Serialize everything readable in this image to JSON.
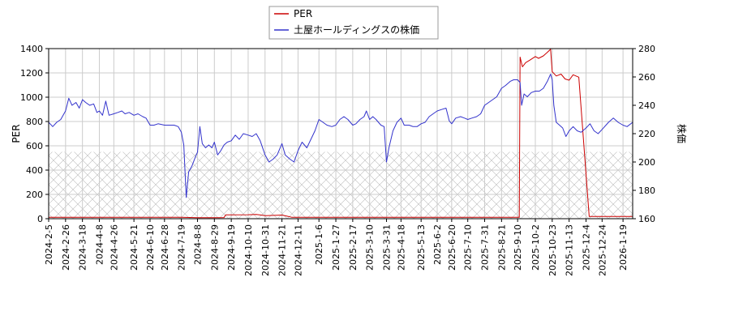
{
  "chart_data": {
    "type": "line",
    "legend": {
      "placement": "top-center",
      "entries": [
        {
          "label": "PER",
          "color": "#cc0000"
        },
        {
          "label": "土屋ホールディングスの株価",
          "color": "#3333cc"
        }
      ]
    },
    "ylabel_left": "PER",
    "ylabel_right": "株価",
    "ylim_left": [
      0,
      1400
    ],
    "ylim_right": [
      160,
      280
    ],
    "yticks_left": [
      "0",
      "200",
      "400",
      "600",
      "800",
      "1000",
      "1200",
      "1400"
    ],
    "yticks_right": [
      "160",
      "180",
      "200",
      "220",
      "240",
      "260",
      "280"
    ],
    "x_tick_labels": [
      "2024-2-5",
      "2024-2-26",
      "2024-3-18",
      "2024-4-8",
      "2024-4-26",
      "2024-5-21",
      "2024-6-10",
      "2024-6-28",
      "2024-7-19",
      "2024-8-8",
      "2024-8-29",
      "2024-9-19",
      "2024-10-10",
      "2024-10-31",
      "2024-11-21",
      "2024-12-11",
      "2025-1-6",
      "2025-1-27",
      "2025-2-17",
      "2025-3-10",
      "2025-3-31",
      "2025-4-18",
      "2025-5-13",
      "2025-6-2",
      "2025-6-20",
      "2025-7-10",
      "2025-7-31",
      "2025-8-21",
      "2025-9-10",
      "2025-10-2",
      "2025-10-23",
      "2025-11-13",
      "2025-12-4",
      "2025-12-24",
      "2026-1-19"
    ],
    "grid": true,
    "hatched_band_left": [
      0,
      550
    ],
    "series": [
      {
        "name": "PER",
        "axis": "left",
        "color": "#cc0000",
        "points": [
          [
            "2024-2-5",
            12
          ],
          [
            "2024-3-18",
            12
          ],
          [
            "2024-5-21",
            12
          ],
          [
            "2024-7-19",
            12
          ],
          [
            "2024-8-8",
            8
          ],
          [
            "2024-8-29",
            8
          ],
          [
            "2024-9-10",
            9
          ],
          [
            "2024-9-12",
            32
          ],
          [
            "2024-10-10",
            33
          ],
          [
            "2024-10-20",
            35
          ],
          [
            "2024-10-26",
            30
          ],
          [
            "2024-10-31",
            25
          ],
          [
            "2024-11-15",
            28
          ],
          [
            "2024-11-21",
            30
          ],
          [
            "2024-11-28",
            20
          ],
          [
            "2024-12-3",
            12
          ],
          [
            "2025-1-6",
            12
          ],
          [
            "2025-3-10",
            12
          ],
          [
            "2025-5-13",
            12
          ],
          [
            "2025-7-10",
            12
          ],
          [
            "2025-8-21",
            12
          ],
          [
            "2025-9-12",
            12
          ],
          [
            "2025-9-13",
            1330
          ],
          [
            "2025-9-16",
            1250
          ],
          [
            "2025-9-20",
            1285
          ],
          [
            "2025-9-25",
            1305
          ],
          [
            "2025-10-2",
            1335
          ],
          [
            "2025-10-6",
            1320
          ],
          [
            "2025-10-12",
            1340
          ],
          [
            "2025-10-17",
            1370
          ],
          [
            "2025-10-21",
            1395
          ],
          [
            "2025-10-23",
            1210
          ],
          [
            "2025-10-28",
            1175
          ],
          [
            "2025-11-3",
            1190
          ],
          [
            "2025-11-8",
            1150
          ],
          [
            "2025-11-13",
            1140
          ],
          [
            "2025-11-18",
            1185
          ],
          [
            "2025-11-25",
            1165
          ],
          [
            "2025-12-8",
            18
          ],
          [
            "2025-12-24",
            18
          ],
          [
            "2026-1-19",
            18
          ],
          [
            "2026-1-31",
            18
          ]
        ]
      },
      {
        "name": "土屋ホールディングスの株価",
        "axis": "right",
        "color": "#3333cc",
        "points": [
          [
            "2024-2-5",
            228
          ],
          [
            "2024-2-10",
            225
          ],
          [
            "2024-2-15",
            228
          ],
          [
            "2024-2-20",
            230
          ],
          [
            "2024-2-26",
            236
          ],
          [
            "2024-3-1",
            245
          ],
          [
            "2024-3-5",
            240
          ],
          [
            "2024-3-10",
            242
          ],
          [
            "2024-3-14",
            238
          ],
          [
            "2024-3-18",
            244
          ],
          [
            "2024-3-22",
            242
          ],
          [
            "2024-3-27",
            240
          ],
          [
            "2024-4-1",
            241
          ],
          [
            "2024-4-5",
            235
          ],
          [
            "2024-4-8",
            236
          ],
          [
            "2024-4-12",
            233
          ],
          [
            "2024-4-16",
            243
          ],
          [
            "2024-4-20",
            233
          ],
          [
            "2024-4-26",
            234
          ],
          [
            "2024-5-1",
            235
          ],
          [
            "2024-5-6",
            236
          ],
          [
            "2024-5-10",
            234
          ],
          [
            "2024-5-15",
            235
          ],
          [
            "2024-5-21",
            233
          ],
          [
            "2024-5-26",
            234
          ],
          [
            "2024-6-1",
            232
          ],
          [
            "2024-6-5",
            231
          ],
          [
            "2024-6-10",
            226
          ],
          [
            "2024-6-15",
            226
          ],
          [
            "2024-6-20",
            227
          ],
          [
            "2024-6-28",
            226
          ],
          [
            "2024-7-5",
            226
          ],
          [
            "2024-7-10",
            226
          ],
          [
            "2024-7-15",
            225
          ],
          [
            "2024-7-19",
            221
          ],
          [
            "2024-7-22",
            212
          ],
          [
            "2024-7-25",
            175
          ],
          [
            "2024-7-28",
            193
          ],
          [
            "2024-8-1",
            197
          ],
          [
            "2024-8-5",
            203
          ],
          [
            "2024-8-8",
            207
          ],
          [
            "2024-8-11",
            225
          ],
          [
            "2024-8-14",
            213
          ],
          [
            "2024-8-18",
            210
          ],
          [
            "2024-8-22",
            212
          ],
          [
            "2024-8-26",
            210
          ],
          [
            "2024-8-29",
            214
          ],
          [
            "2024-9-2",
            205
          ],
          [
            "2024-9-6",
            208
          ],
          [
            "2024-9-10",
            212
          ],
          [
            "2024-9-14",
            214
          ],
          [
            "2024-9-19",
            215
          ],
          [
            "2024-9-24",
            219
          ],
          [
            "2024-9-29",
            216
          ],
          [
            "2024-10-4",
            220
          ],
          [
            "2024-10-10",
            219
          ],
          [
            "2024-10-15",
            218
          ],
          [
            "2024-10-20",
            220
          ],
          [
            "2024-10-25",
            215
          ],
          [
            "2024-10-31",
            205
          ],
          [
            "2024-11-5",
            200
          ],
          [
            "2024-11-10",
            202
          ],
          [
            "2024-11-15",
            205
          ],
          [
            "2024-11-21",
            213
          ],
          [
            "2024-11-25",
            205
          ],
          [
            "2024-12-1",
            202
          ],
          [
            "2024-12-6",
            200
          ],
          [
            "2024-12-11",
            208
          ],
          [
            "2024-12-16",
            214
          ],
          [
            "2024-12-22",
            210
          ],
          [
            "2024-12-27",
            216
          ],
          [
            "2025-1-1",
            222
          ],
          [
            "2025-1-6",
            230
          ],
          [
            "2025-1-11",
            228
          ],
          [
            "2025-1-16",
            226
          ],
          [
            "2025-1-22",
            225
          ],
          [
            "2025-1-27",
            226
          ],
          [
            "2025-2-1",
            230
          ],
          [
            "2025-2-6",
            232
          ],
          [
            "2025-2-11",
            230
          ],
          [
            "2025-2-17",
            226
          ],
          [
            "2025-2-21",
            227
          ],
          [
            "2025-2-26",
            230
          ],
          [
            "2025-3-3",
            232
          ],
          [
            "2025-3-6",
            236
          ],
          [
            "2025-3-10",
            230
          ],
          [
            "2025-3-14",
            232
          ],
          [
            "2025-3-18",
            230
          ],
          [
            "2025-3-24",
            226
          ],
          [
            "2025-3-28",
            225
          ],
          [
            "2025-3-31",
            200
          ],
          [
            "2025-4-3",
            210
          ],
          [
            "2025-4-8",
            222
          ],
          [
            "2025-4-13",
            228
          ],
          [
            "2025-4-18",
            231
          ],
          [
            "2025-4-22",
            226
          ],
          [
            "2025-4-28",
            226
          ],
          [
            "2025-5-3",
            225
          ],
          [
            "2025-5-8",
            225
          ],
          [
            "2025-5-13",
            227
          ],
          [
            "2025-5-18",
            228
          ],
          [
            "2025-5-23",
            232
          ],
          [
            "2025-5-28",
            234
          ],
          [
            "2025-6-2",
            236
          ],
          [
            "2025-6-7",
            237
          ],
          [
            "2025-6-13",
            238
          ],
          [
            "2025-6-17",
            229
          ],
          [
            "2025-6-20",
            227
          ],
          [
            "2025-6-25",
            231
          ],
          [
            "2025-7-1",
            232
          ],
          [
            "2025-7-6",
            231
          ],
          [
            "2025-7-10",
            230
          ],
          [
            "2025-7-15",
            231
          ],
          [
            "2025-7-21",
            232
          ],
          [
            "2025-7-26",
            234
          ],
          [
            "2025-7-31",
            240
          ],
          [
            "2025-8-5",
            242
          ],
          [
            "2025-8-10",
            244
          ],
          [
            "2025-8-15",
            246
          ],
          [
            "2025-8-21",
            252
          ],
          [
            "2025-8-26",
            254
          ],
          [
            "2025-9-1",
            257
          ],
          [
            "2025-9-5",
            258
          ],
          [
            "2025-9-10",
            258
          ],
          [
            "2025-9-13",
            256
          ],
          [
            "2025-9-15",
            240
          ],
          [
            "2025-9-18",
            248
          ],
          [
            "2025-9-22",
            246
          ],
          [
            "2025-9-27",
            249
          ],
          [
            "2025-10-2",
            250
          ],
          [
            "2025-10-7",
            250
          ],
          [
            "2025-10-12",
            252
          ],
          [
            "2025-10-17",
            257
          ],
          [
            "2025-10-21",
            262
          ],
          [
            "2025-10-23",
            258
          ],
          [
            "2025-10-25",
            240
          ],
          [
            "2025-10-28",
            228
          ],
          [
            "2025-11-1",
            226
          ],
          [
            "2025-11-5",
            224
          ],
          [
            "2025-11-9",
            218
          ],
          [
            "2025-11-13",
            222
          ],
          [
            "2025-11-18",
            225
          ],
          [
            "2025-11-23",
            222
          ],
          [
            "2025-11-28",
            221
          ],
          [
            "2025-12-4",
            224
          ],
          [
            "2025-12-9",
            227
          ],
          [
            "2025-12-14",
            222
          ],
          [
            "2025-12-19",
            220
          ],
          [
            "2025-12-24",
            223
          ],
          [
            "2026-1-1",
            228
          ],
          [
            "2026-1-7",
            231
          ],
          [
            "2026-1-13",
            228
          ],
          [
            "2026-1-19",
            226
          ],
          [
            "2026-1-24",
            225
          ],
          [
            "2026-1-31",
            228
          ]
        ]
      }
    ]
  }
}
